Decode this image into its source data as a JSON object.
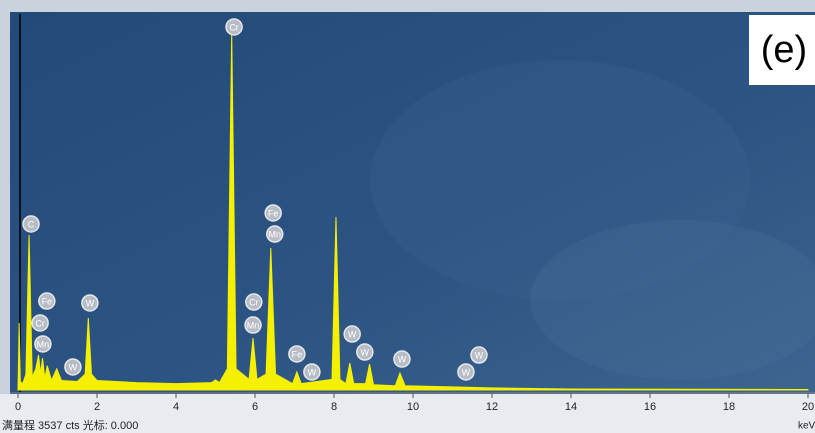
{
  "chart_data": {
    "type": "spectrum",
    "title": "(e)",
    "x_label": "keV",
    "footer": "满量程 3537 cts 光标: 0.000",
    "xlim": [
      0,
      20
    ],
    "xticks": [
      0,
      2,
      4,
      6,
      8,
      10,
      12,
      14,
      16,
      18,
      20
    ],
    "ylim": [
      0,
      3537
    ],
    "color": "#f4f000",
    "x": [
      0,
      0.03,
      0.06,
      0.12,
      0.2,
      0.28,
      0.36,
      0.45,
      0.52,
      0.57,
      0.62,
      0.68,
      0.74,
      0.85,
      0.98,
      1.1,
      1.5,
      1.7,
      1.78,
      1.86,
      2.0,
      3.0,
      4.0,
      4.9,
      5.0,
      5.1,
      5.3,
      5.41,
      5.52,
      5.85,
      5.95,
      6.05,
      6.28,
      6.4,
      6.52,
      6.95,
      7.06,
      7.17,
      7.95,
      8.05,
      8.15,
      8.3,
      8.4,
      8.5,
      8.8,
      8.9,
      9.0,
      9.55,
      9.67,
      9.8,
      11,
      12,
      14,
      20
    ],
    "values": [
      0,
      632,
      80,
      60,
      150,
      1462,
      120,
      200,
      330,
      150,
      300,
      110,
      230,
      90,
      200,
      90,
      80,
      150,
      679,
      150,
      90,
      70,
      60,
      70,
      94,
      70,
      200,
      3377,
      200,
      100,
      490,
      100,
      150,
      1339,
      150,
      60,
      170,
      60,
      100,
      1632,
      100,
      60,
      255,
      60,
      60,
      245,
      50,
      40,
      160,
      40,
      30,
      20,
      10,
      5
    ],
    "annotations": [
      {
        "label": "C",
        "x": 0.33,
        "y": 1566
      },
      {
        "label": "Cr",
        "x": 5.47,
        "y": 3424
      },
      {
        "label": "Fe",
        "x": 6.46,
        "y": 1670
      },
      {
        "label": "Mn",
        "x": 6.5,
        "y": 1471
      },
      {
        "label": "Fe",
        "x": 0.73,
        "y": 839
      },
      {
        "label": "Cr",
        "x": 0.56,
        "y": 632
      },
      {
        "label": "Mn",
        "x": 0.63,
        "y": 434
      },
      {
        "label": "W",
        "x": 1.39,
        "y": 217
      },
      {
        "label": "W",
        "x": 1.82,
        "y": 821
      },
      {
        "label": "Cr",
        "x": 5.97,
        "y": 830
      },
      {
        "label": "Mn",
        "x": 5.95,
        "y": 613
      },
      {
        "label": "Fe",
        "x": 7.06,
        "y": 340
      },
      {
        "label": "W",
        "x": 7.44,
        "y": 170
      },
      {
        "label": "W",
        "x": 8.46,
        "y": 528
      },
      {
        "label": "W",
        "x": 8.78,
        "y": 358
      },
      {
        "label": "W",
        "x": 9.72,
        "y": 292
      },
      {
        "label": "W",
        "x": 11.67,
        "y": 330
      },
      {
        "label": "W",
        "x": 11.34,
        "y": 170
      }
    ]
  }
}
